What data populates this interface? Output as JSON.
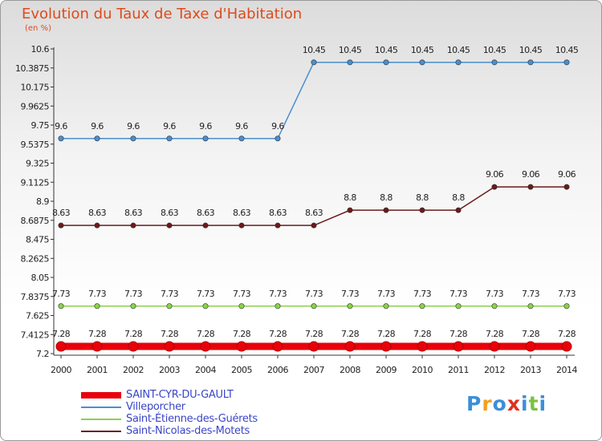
{
  "chart_data": {
    "type": "line",
    "title": "Evolution du Taux de Taxe d'Habitation",
    "ylabel": "(en %)",
    "xlabel": "",
    "ylim": [
      7.2,
      10.6
    ],
    "y_ticks": [
      "10.6",
      "10.3875",
      "10.175",
      "9.9625",
      "9.75",
      "9.5375",
      "9.325",
      "9.1125",
      "8.9",
      "8.6875",
      "8.475",
      "8.2625",
      "8.05",
      "7.8375",
      "7.625",
      "7.4125",
      "7.2"
    ],
    "x": [
      "2000",
      "2001",
      "2002",
      "2003",
      "2004",
      "2005",
      "2006",
      "2007",
      "2008",
      "2009",
      "2010",
      "2011",
      "2012",
      "2013",
      "2014"
    ],
    "series": [
      {
        "name": "SAINT-CYR-DU-GAULT",
        "color": "#e8000b",
        "values": [
          7.28,
          7.28,
          7.28,
          7.28,
          7.28,
          7.28,
          7.28,
          7.28,
          7.28,
          7.28,
          7.28,
          7.28,
          7.28,
          7.28,
          7.28
        ],
        "labels": [
          "7.28",
          "7.28",
          "7.28",
          "7.28",
          "7.28",
          "7.28",
          "7.28",
          "7.28",
          "7.28",
          "7.28",
          "7.28",
          "7.28",
          "7.28",
          "7.28",
          "7.28"
        ]
      },
      {
        "name": "Villeporcher",
        "color": "#4a8fce",
        "values": [
          9.6,
          9.6,
          9.6,
          9.6,
          9.6,
          9.6,
          9.6,
          10.45,
          10.45,
          10.45,
          10.45,
          10.45,
          10.45,
          10.45,
          10.45
        ],
        "labels": [
          "9.6",
          "9.6",
          "9.6",
          "9.6",
          "9.6",
          "9.6",
          "9.6",
          "10.45",
          "10.45",
          "10.45",
          "10.45",
          "10.45",
          "10.45",
          "10.45",
          "10.45"
        ]
      },
      {
        "name": "Saint-Étienne-des-Guérets",
        "color": "#8cd24a",
        "values": [
          7.73,
          7.73,
          7.73,
          7.73,
          7.73,
          7.73,
          7.73,
          7.73,
          7.73,
          7.73,
          7.73,
          7.73,
          7.73,
          7.73,
          7.73
        ],
        "labels": [
          "7.73",
          "7.73",
          "7.73",
          "7.73",
          "7.73",
          "7.73",
          "7.73",
          "7.73",
          "7.73",
          "7.73",
          "7.73",
          "7.73",
          "7.73",
          "7.73",
          "7.73"
        ]
      },
      {
        "name": "Saint-Nicolas-des-Motets",
        "color": "#6b1a1a",
        "values": [
          8.63,
          8.63,
          8.63,
          8.63,
          8.63,
          8.63,
          8.63,
          8.63,
          8.8,
          8.8,
          8.8,
          8.8,
          9.06,
          9.06,
          9.06
        ],
        "labels": [
          "8.63",
          "8.63",
          "8.63",
          "8.63",
          "8.63",
          "8.63",
          "8.63",
          "8.63",
          "8.8",
          "8.8",
          "8.8",
          "8.8",
          "9.06",
          "9.06",
          "9.06"
        ]
      }
    ],
    "grid": false,
    "legend_position": "bottom-left"
  },
  "logo": {
    "text": "Proxiti",
    "letters": [
      {
        "ch": "P",
        "color": "#3b8fd8"
      },
      {
        "ch": "r",
        "color": "#f0a020"
      },
      {
        "ch": "o",
        "color": "#3b8fd8"
      },
      {
        "ch": "x",
        "color": "#e03020"
      },
      {
        "ch": "i",
        "color": "#3b8fd8"
      },
      {
        "ch": "t",
        "color": "#7bc142"
      },
      {
        "ch": "i",
        "color": "#3b8fd8"
      }
    ]
  }
}
